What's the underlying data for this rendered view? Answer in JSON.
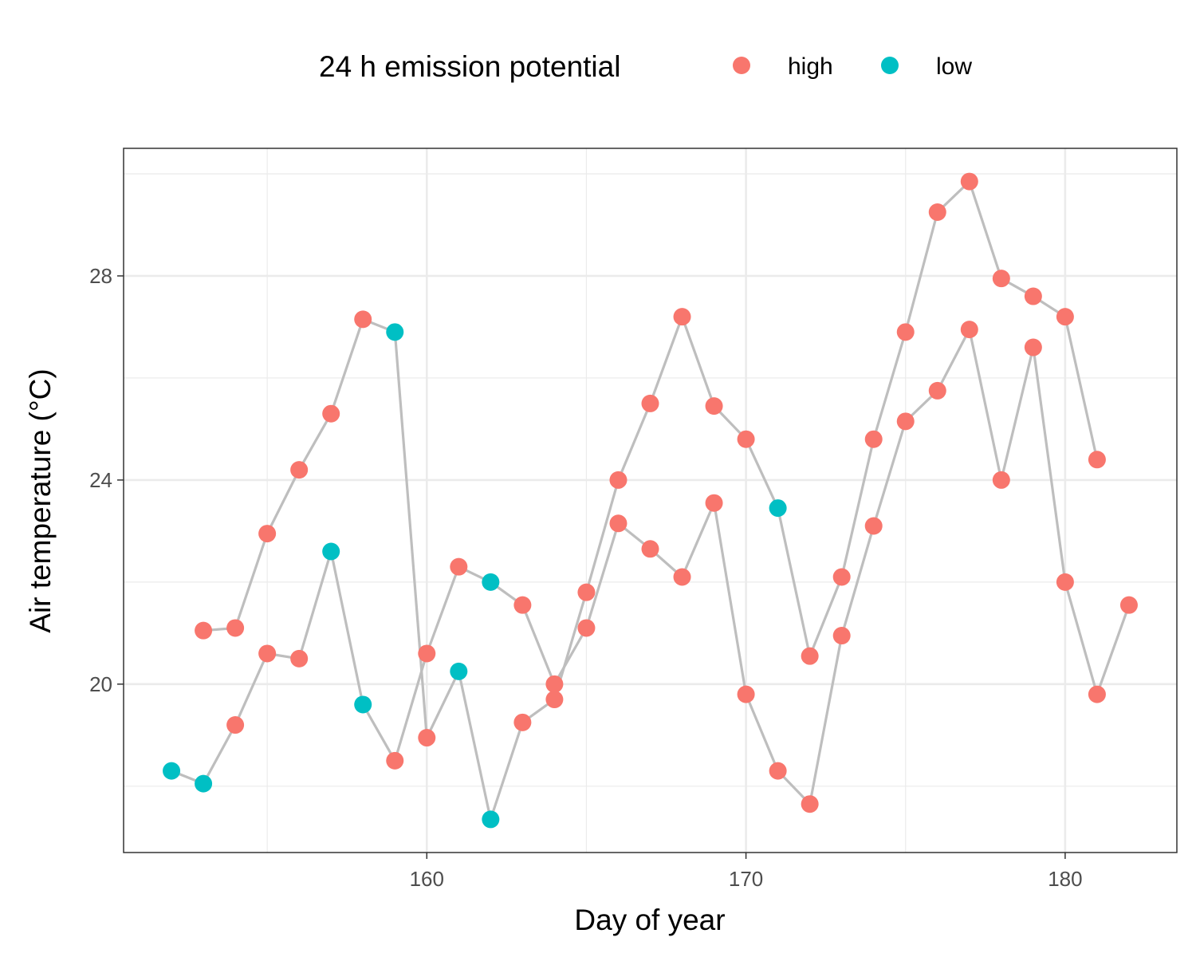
{
  "chart_data": {
    "type": "scatter",
    "title": "",
    "xlabel": "Day of year",
    "ylabel": "Air temperature (°C)",
    "xlim": [
      150.5,
      183.5
    ],
    "ylim": [
      16.7,
      30.5
    ],
    "x_ticks": [
      160,
      170,
      180
    ],
    "y_ticks": [
      20,
      24,
      28
    ],
    "x_tick_labels": [
      "160",
      "170",
      "180"
    ],
    "y_tick_labels": [
      "20",
      "24",
      "28"
    ],
    "grid": true,
    "legend": {
      "title": "24 h emission potential",
      "position": "top",
      "entries": [
        {
          "label": "high",
          "color": "#F8766D"
        },
        {
          "label": "low",
          "color": "#00BFC4"
        }
      ]
    },
    "line_color": "#BEBEBE",
    "series": [
      {
        "points": [
          {
            "x": 152,
            "y": 18.3,
            "group": "low"
          },
          {
            "x": 153,
            "y": 18.05,
            "group": "low"
          },
          {
            "x": 154,
            "y": 19.2,
            "group": "high"
          },
          {
            "x": 155,
            "y": 20.6,
            "group": "high"
          },
          {
            "x": 156,
            "y": 20.5,
            "group": "high"
          },
          {
            "x": 157,
            "y": 22.6,
            "group": "low"
          },
          {
            "x": 158,
            "y": 19.6,
            "group": "low"
          },
          {
            "x": 159,
            "y": 18.5,
            "group": "high"
          },
          {
            "x": 160,
            "y": 20.6,
            "group": "high"
          },
          {
            "x": 161,
            "y": 22.3,
            "group": "high"
          },
          {
            "x": 162,
            "y": 22.0,
            "group": "low"
          },
          {
            "x": 163,
            "y": 21.55,
            "group": "high"
          },
          {
            "x": 164,
            "y": 20.0,
            "group": "high"
          },
          {
            "x": 165,
            "y": 21.1,
            "group": "high"
          },
          {
            "x": 166,
            "y": 23.15,
            "group": "high"
          },
          {
            "x": 167,
            "y": 22.65,
            "group": "high"
          },
          {
            "x": 168,
            "y": 22.1,
            "group": "high"
          },
          {
            "x": 169,
            "y": 23.55,
            "group": "high"
          },
          {
            "x": 170,
            "y": 19.8,
            "group": "high"
          },
          {
            "x": 171,
            "y": 18.3,
            "group": "high"
          },
          {
            "x": 172,
            "y": 17.65,
            "group": "high"
          },
          {
            "x": 173,
            "y": 20.95,
            "group": "high"
          },
          {
            "x": 174,
            "y": 23.1,
            "group": "high"
          },
          {
            "x": 175,
            "y": 25.15,
            "group": "high"
          },
          {
            "x": 176,
            "y": 25.75,
            "group": "high"
          },
          {
            "x": 177,
            "y": 26.95,
            "group": "high"
          },
          {
            "x": 178,
            "y": 24.0,
            "group": "high"
          },
          {
            "x": 179,
            "y": 26.6,
            "group": "high"
          },
          {
            "x": 180,
            "y": 22.0,
            "group": "high"
          },
          {
            "x": 181,
            "y": 19.8,
            "group": "high"
          },
          {
            "x": 182,
            "y": 21.55,
            "group": "high"
          }
        ]
      },
      {
        "points": [
          {
            "x": 153,
            "y": 21.05,
            "group": "high"
          },
          {
            "x": 154,
            "y": 21.1,
            "group": "high"
          },
          {
            "x": 155,
            "y": 22.95,
            "group": "high"
          },
          {
            "x": 156,
            "y": 24.2,
            "group": "high"
          },
          {
            "x": 157,
            "y": 25.3,
            "group": "high"
          },
          {
            "x": 158,
            "y": 27.15,
            "group": "high"
          },
          {
            "x": 159,
            "y": 26.9,
            "group": "low"
          },
          {
            "x": 160,
            "y": 18.95,
            "group": "high"
          },
          {
            "x": 161,
            "y": 20.25,
            "group": "low"
          },
          {
            "x": 162,
            "y": 17.35,
            "group": "low"
          },
          {
            "x": 163,
            "y": 19.25,
            "group": "high"
          },
          {
            "x": 164,
            "y": 19.7,
            "group": "high"
          },
          {
            "x": 165,
            "y": 21.8,
            "group": "high"
          },
          {
            "x": 166,
            "y": 24.0,
            "group": "high"
          },
          {
            "x": 167,
            "y": 25.5,
            "group": "high"
          },
          {
            "x": 168,
            "y": 27.2,
            "group": "high"
          },
          {
            "x": 169,
            "y": 25.45,
            "group": "high"
          },
          {
            "x": 170,
            "y": 24.8,
            "group": "high"
          },
          {
            "x": 171,
            "y": 23.45,
            "group": "low"
          },
          {
            "x": 172,
            "y": 20.55,
            "group": "high"
          },
          {
            "x": 173,
            "y": 22.1,
            "group": "high"
          },
          {
            "x": 174,
            "y": 24.8,
            "group": "high"
          },
          {
            "x": 175,
            "y": 26.9,
            "group": "high"
          },
          {
            "x": 176,
            "y": 29.25,
            "group": "high"
          },
          {
            "x": 177,
            "y": 29.85,
            "group": "high"
          },
          {
            "x": 178,
            "y": 27.95,
            "group": "high"
          },
          {
            "x": 179,
            "y": 27.6,
            "group": "high"
          },
          {
            "x": 180,
            "y": 27.2,
            "group": "high"
          },
          {
            "x": 181,
            "y": 24.4,
            "group": "high"
          }
        ]
      }
    ]
  }
}
